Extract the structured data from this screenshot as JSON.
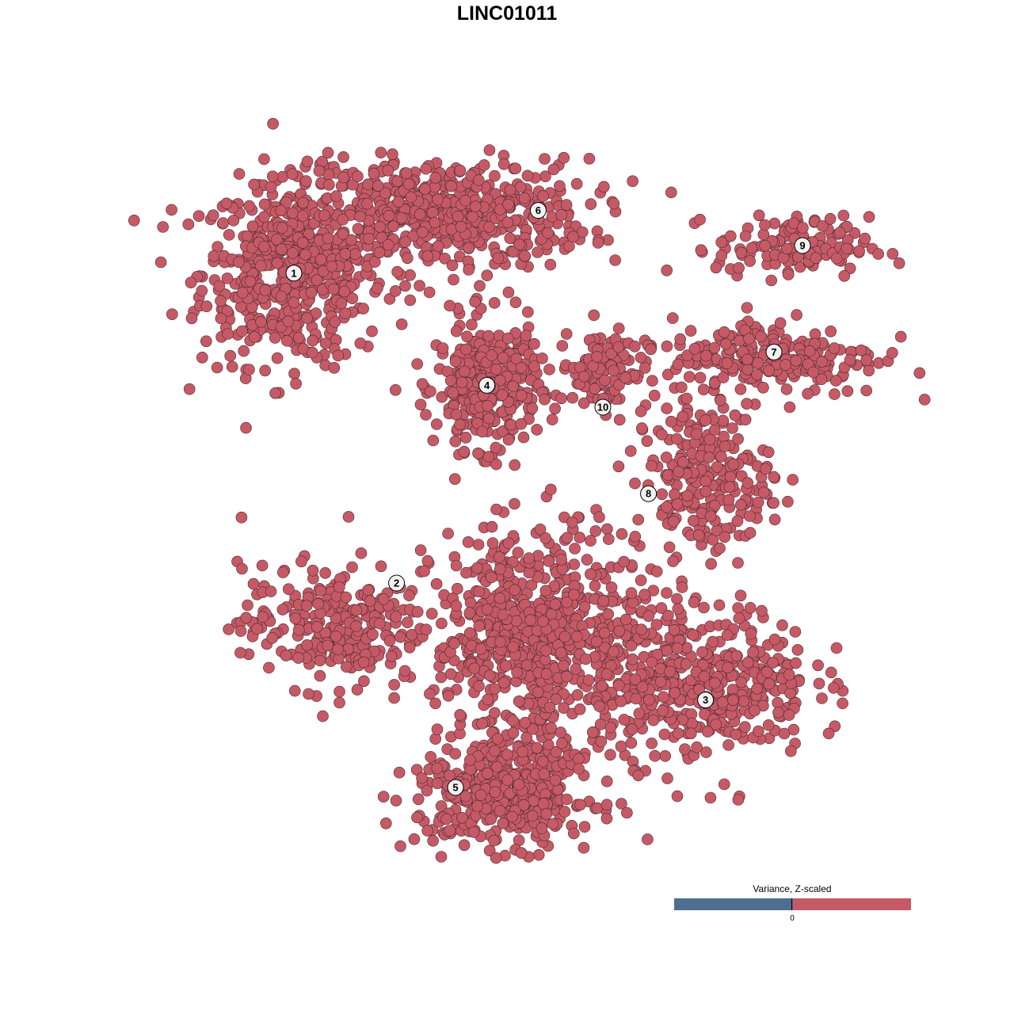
{
  "chart_data": {
    "type": "scatter",
    "title": "LINC01011",
    "xlabel": "",
    "ylabel": "",
    "grid": false,
    "axes_visible": false,
    "point_color": "#c55a66",
    "point_outline": "#4a2a2e",
    "legend": {
      "title": "Variance, Z-scaled",
      "position": "bottom-right",
      "low_color": "#506e90",
      "high_color": "#c55a66",
      "ticks": [
        "0"
      ]
    },
    "clusters": [
      {
        "label": "1",
        "center": [
          -24.6,
          24.6
        ],
        "spread": [
          6.0,
          6.0
        ],
        "n": 520
      },
      {
        "label": "6",
        "center": [
          -8.8,
          30.8
        ],
        "spread": [
          9.5,
          3.6
        ],
        "n": 560
      },
      {
        "label": "4",
        "center": [
          -4.2,
          12.8
        ],
        "spread": [
          3.3,
          4.2
        ],
        "n": 330
      },
      {
        "label": "10",
        "center": [
          8.0,
          14.5
        ],
        "spread": [
          3.0,
          2.6
        ],
        "n": 110
      },
      {
        "label": "9",
        "center": [
          28.0,
          27.3
        ],
        "spread": [
          5.0,
          2.0
        ],
        "n": 130
      },
      {
        "label": "7",
        "center": [
          26.0,
          15.8
        ],
        "spread": [
          7.0,
          2.6
        ],
        "n": 230
      },
      {
        "label": "8",
        "center": [
          18.5,
          3.0
        ],
        "spread": [
          4.5,
          5.0
        ],
        "n": 230
      },
      {
        "label": "2",
        "center": [
          -20.5,
          -12.5
        ],
        "spread": [
          6.0,
          4.0
        ],
        "n": 260
      },
      {
        "label": "3",
        "center": [
          18.8,
          -18.3
        ],
        "spread": [
          7.0,
          5.0
        ],
        "n": 420
      },
      {
        "label": "5",
        "center": [
          -2.1,
          -30.0
        ],
        "spread": [
          5.8,
          3.6
        ],
        "n": 420
      }
    ],
    "extra_mass": [
      {
        "center": [
          1.5,
          -13.5
        ],
        "spread": [
          7.0,
          7.0
        ],
        "n": 650
      }
    ],
    "label_positions": {
      "1": [
        -24.5,
        24.6
      ],
      "6": [
        1.2,
        31.2
      ],
      "4": [
        -4.2,
        12.8
      ],
      "10": [
        8.0,
        10.5
      ],
      "9": [
        29.0,
        27.5
      ],
      "7": [
        26.0,
        16.3
      ],
      "8": [
        12.8,
        1.4
      ],
      "2": [
        -13.7,
        -8.0
      ],
      "3": [
        18.8,
        -20.3
      ],
      "5": [
        -7.5,
        -29.5
      ]
    }
  }
}
